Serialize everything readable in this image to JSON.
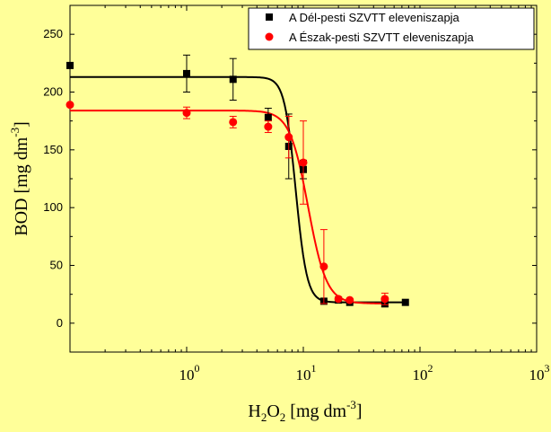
{
  "chart_data": {
    "type": "scatter",
    "title": "",
    "xlabel": {
      "base": "H",
      "sub1": "2",
      "mid": "O",
      "sub2": "2",
      "unit": " [mg dm",
      "sup": "-3",
      "close": "]"
    },
    "ylabel": {
      "unit": "BOD [mg dm",
      "sup": "-3",
      "close": "]"
    },
    "x_scale": "log",
    "xlim": [
      0.1,
      1000
    ],
    "ylim": [
      -25,
      275
    ],
    "x_ticks": [
      {
        "value": 1,
        "base": "10",
        "exp": "0"
      },
      {
        "value": 10,
        "base": "10",
        "exp": "1"
      },
      {
        "value": 100,
        "base": "10",
        "exp": "2"
      },
      {
        "value": 1000,
        "base": "10",
        "exp": "3"
      }
    ],
    "y_ticks": [
      "0",
      "50",
      "100",
      "150",
      "200",
      "250"
    ],
    "legend_position": "top-right",
    "series": [
      {
        "name": "A Dél-pesti SZVTT eleveniszapja",
        "color": "#000000",
        "marker": "square",
        "points": [
          {
            "x": 0.1,
            "y": 223,
            "err": 0
          },
          {
            "x": 1,
            "y": 216,
            "err": 16
          },
          {
            "x": 2.5,
            "y": 211,
            "err": 18
          },
          {
            "x": 5,
            "y": 178,
            "err": 8
          },
          {
            "x": 7.5,
            "y": 153,
            "err": 28
          },
          {
            "x": 10,
            "y": 133,
            "err": 8
          },
          {
            "x": 15,
            "y": 19,
            "err": 0
          },
          {
            "x": 20,
            "y": 20,
            "err": 0
          },
          {
            "x": 25,
            "y": 18,
            "err": 0
          },
          {
            "x": 50,
            "y": 17,
            "err": 3
          },
          {
            "x": 75,
            "y": 18,
            "err": 0
          }
        ],
        "fit": {
          "top": 213,
          "bottom": 18,
          "x0": 8.6,
          "p": 9
        }
      },
      {
        "name": "A Észak-pesti SZVTT eleveniszapja",
        "color": "#ff0000",
        "marker": "circle",
        "points": [
          {
            "x": 0.1,
            "y": 189,
            "err": 0
          },
          {
            "x": 1,
            "y": 182,
            "err": 5
          },
          {
            "x": 2.5,
            "y": 174,
            "err": 5
          },
          {
            "x": 5,
            "y": 170,
            "err": 5
          },
          {
            "x": 7.5,
            "y": 161,
            "err": 18
          },
          {
            "x": 10,
            "y": 139,
            "err": 36
          },
          {
            "x": 15,
            "y": 49,
            "err": 32
          },
          {
            "x": 20,
            "y": 21,
            "err": 0
          },
          {
            "x": 25,
            "y": 20,
            "err": 0
          },
          {
            "x": 50,
            "y": 21,
            "err": 5
          }
        ],
        "fit": {
          "top": 184,
          "bottom": 17,
          "x0": 11,
          "p": 5.5
        }
      }
    ]
  }
}
